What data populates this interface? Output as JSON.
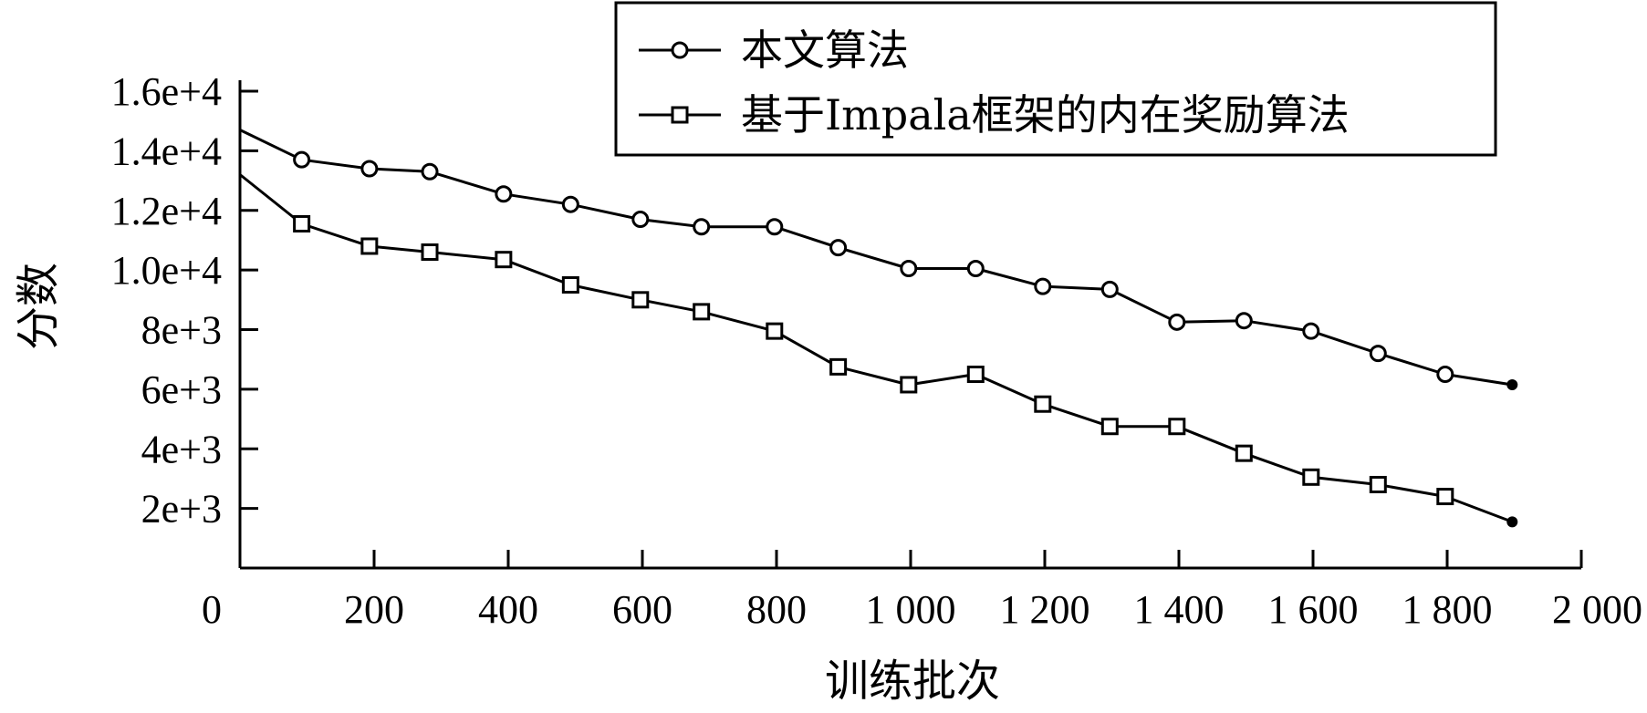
{
  "chart_data": {
    "type": "line",
    "xlabel": "训练批次",
    "ylabel": "分数",
    "xlim": [
      0,
      2000
    ],
    "ylim": [
      0,
      16000
    ],
    "xticks": [
      {
        "value": 0,
        "label": "0"
      },
      {
        "value": 200,
        "label": "200"
      },
      {
        "value": 400,
        "label": "400"
      },
      {
        "value": 600,
        "label": "600"
      },
      {
        "value": 800,
        "label": "800"
      },
      {
        "value": 1000,
        "label": "1 000"
      },
      {
        "value": 1200,
        "label": "1 200"
      },
      {
        "value": 1400,
        "label": "1 400"
      },
      {
        "value": 1600,
        "label": "1 600"
      },
      {
        "value": 1800,
        "label": "1 800"
      },
      {
        "value": 2000,
        "label": "2 000"
      }
    ],
    "yticks": [
      {
        "value": 2000,
        "label": "2e+3"
      },
      {
        "value": 4000,
        "label": "4e+3"
      },
      {
        "value": 6000,
        "label": "6e+3"
      },
      {
        "value": 8000,
        "label": "8e+3"
      },
      {
        "value": 10000,
        "label": "1.0e+4"
      },
      {
        "value": 12000,
        "label": "1.2e+4"
      },
      {
        "value": 14000,
        "label": "1.4e+4"
      },
      {
        "value": 16000,
        "label": "1.6e+4"
      }
    ],
    "grid": false,
    "legend_position": "top-right",
    "series": [
      {
        "name": "本文算法",
        "marker": "circle",
        "color": "#000000",
        "x": [
          0,
          92,
          193,
          283,
          393,
          493,
          597,
          688,
          797,
          892,
          997,
          1097,
          1197,
          1297,
          1397,
          1497,
          1597,
          1697,
          1797,
          1897
        ],
        "y": [
          14700,
          13700,
          13400,
          13300,
          12550,
          12200,
          11700,
          11450,
          11450,
          10750,
          10050,
          10050,
          9450,
          9350,
          8250,
          8300,
          7950,
          7200,
          6500,
          6150
        ]
      },
      {
        "name": "基于Impala框架的内在奖励算法",
        "marker": "square",
        "color": "#000000",
        "x": [
          0,
          92,
          193,
          283,
          393,
          493,
          597,
          688,
          797,
          892,
          997,
          1097,
          1197,
          1297,
          1397,
          1497,
          1597,
          1697,
          1797,
          1897
        ],
        "y": [
          13200,
          11550,
          10800,
          10600,
          10350,
          9500,
          9000,
          8600,
          7950,
          6750,
          6150,
          6500,
          5500,
          4750,
          4750,
          3850,
          3050,
          2800,
          2400,
          1550
        ]
      }
    ]
  }
}
